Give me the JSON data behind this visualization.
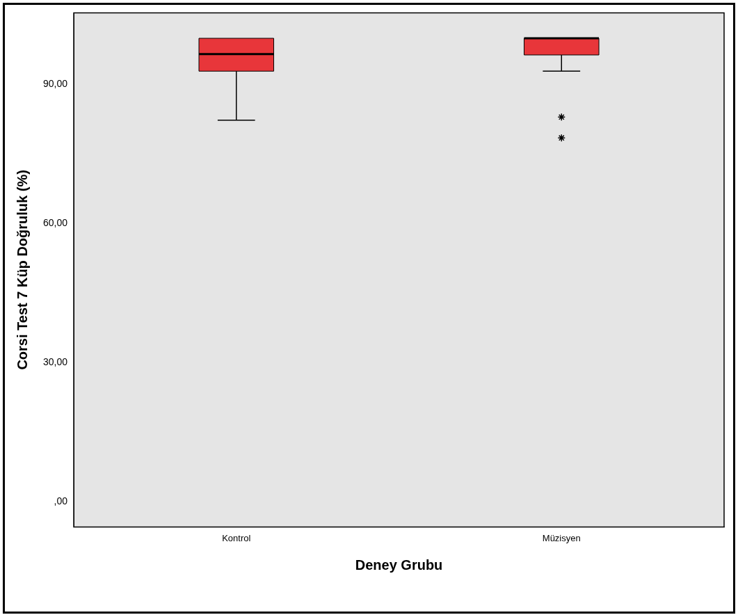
{
  "chart_data": {
    "type": "box",
    "xlabel": "Deney Grubu",
    "ylabel": "Corsi Test 7 Küp Doğruluk (%)",
    "categories": [
      "Kontrol",
      "Müzisyen"
    ],
    "color": "#e8363a",
    "marker": "star",
    "boxes": [
      {
        "low": 82.3,
        "q1": 92.9,
        "median": 96.6,
        "q3": 100,
        "high": 100
      },
      {
        "low": 92.9,
        "q1": 96.4,
        "median": 100,
        "q3": 100,
        "high": 100,
        "outliers": [
          83.0,
          78.5
        ]
      }
    ],
    "ylim": [
      -5.5,
      105.5
    ],
    "yticks": [
      {
        "value": 0,
        "label": ",00"
      },
      {
        "value": 30,
        "label": "30,00"
      },
      {
        "value": 60,
        "label": "60,00"
      },
      {
        "value": 90,
        "label": "90,00"
      }
    ]
  }
}
